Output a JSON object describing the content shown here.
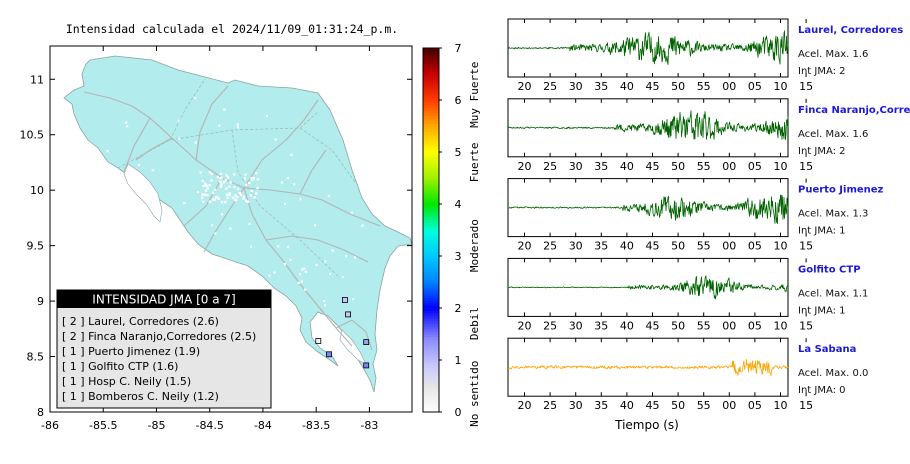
{
  "map": {
    "title": "Intensidad calculada el 2024/11/09_01:31:24_p.m.",
    "lon_ticks": [
      "-86",
      "-85.5",
      "-85",
      "-84.5",
      "-84",
      "-83.5",
      "-83"
    ],
    "lat_ticks": [
      "8",
      "8.5",
      "9",
      "9.5",
      "10",
      "10.5",
      "11"
    ],
    "land_color": "#b2ecec",
    "stations": [
      {
        "lon": -83.23,
        "lat": 9.01,
        "color": "#c8c8ff"
      },
      {
        "lon": -83.2,
        "lat": 8.88,
        "color": "#c8c8ff"
      },
      {
        "lon": -83.03,
        "lat": 8.63,
        "color": "#a0a0f0"
      },
      {
        "lon": -83.48,
        "lat": 8.64,
        "color": "#ffffff"
      },
      {
        "lon": -83.38,
        "lat": 8.52,
        "color": "#8080ff"
      },
      {
        "lon": -83.03,
        "lat": 8.42,
        "color": "#8080ff"
      }
    ]
  },
  "legend": {
    "title": "INTENSIDAD JMA [0 a 7]",
    "items": [
      "[ 2 ] Laurel, Corredores (2.6)",
      "[ 2 ] Finca Naranjo,Corredores (2.5)",
      "[ 1 ] Puerto Jimenez (1.9)",
      "[ 1 ] Golfito CTP (1.6)",
      "[ 1 ] Hosp C. Neily (1.5)",
      "[ 1 ] Bomberos C. Neily (1.2)"
    ]
  },
  "colorbar": {
    "ticks": [
      "0",
      "1",
      "2",
      "3",
      "4",
      "5",
      "6",
      "7"
    ],
    "labels": [
      {
        "text": "Muy Fuerte",
        "at": 6.1
      },
      {
        "text": "Fuerte",
        "at": 4.8
      },
      {
        "text": "Moderado",
        "at": 3.2
      },
      {
        "text": "Debil",
        "at": 1.7
      },
      {
        "text": "No sentido",
        "at": 0.35
      }
    ]
  },
  "traces": {
    "xlabel": "Tiempo (s)",
    "x_ticks": [
      "20",
      "25",
      "30",
      "35",
      "40",
      "45",
      "50",
      "55",
      "00",
      "05",
      "10",
      "15"
    ],
    "stations": [
      {
        "name": "Laurel, Corredores",
        "acel": "Acel. Max. 1.6",
        "jma": "Int JMA: 2",
        "color": "#006400",
        "onset": 0.22,
        "amp": 0.9,
        "seed": 11
      },
      {
        "name": "Finca Naranjo,Corredores",
        "acel": "Acel. Max. 1.6",
        "jma": "Int JMA: 2",
        "color": "#006400",
        "onset": 0.38,
        "amp": 0.95,
        "seed": 23
      },
      {
        "name": "Puerto Jimenez",
        "acel": "Acel. Max. 1.3",
        "jma": "Int JMA: 1",
        "color": "#006400",
        "onset": 0.41,
        "amp": 0.85,
        "seed": 37
      },
      {
        "name": "Golfito CTP",
        "acel": "Acel. Max. 1.1",
        "jma": "Int JMA: 1",
        "color": "#006400",
        "onset": 0.42,
        "amp": 0.55,
        "seed": 41
      },
      {
        "name": "La Sabana",
        "acel": "Acel. Max. 0.0",
        "jma": "Int JMA: 0",
        "color": "#ffa500",
        "onset": 0.8,
        "amp": 0.45,
        "seed": 53
      }
    ]
  },
  "chart_data": [
    {
      "type": "scatter",
      "title": "Intensidad calculada el 2024/11/09_01:31:24_p.m.",
      "xlabel": "",
      "ylabel": "",
      "xlim": [
        -86,
        -82.6
      ],
      "ylim": [
        8,
        11.3
      ],
      "x_ticks": [
        -86,
        -85.5,
        -85,
        -84.5,
        -84,
        -83.5,
        -83
      ],
      "y_ticks": [
        8,
        8.5,
        9,
        9.5,
        10,
        10.5,
        11
      ],
      "colorbar": {
        "range": [
          0,
          7
        ],
        "labels": [
          "Muy Fuerte",
          "Fuerte",
          "Moderado",
          "Debil",
          "No sentido"
        ]
      },
      "legend_title": "INTENSIDAD JMA [0 a 7]",
      "legend": [
        {
          "label": "Laurel, Corredores",
          "jma": 2,
          "value": 2.6
        },
        {
          "label": "Finca Naranjo,Corredores",
          "jma": 2,
          "value": 2.5
        },
        {
          "label": "Puerto Jimenez",
          "jma": 1,
          "value": 1.9
        },
        {
          "label": "Golfito CTP",
          "jma": 1,
          "value": 1.6
        },
        {
          "label": "Hosp C. Neily",
          "jma": 1,
          "value": 1.5
        },
        {
          "label": "Bomberos C. Neily",
          "jma": 1,
          "value": 1.2
        }
      ]
    },
    {
      "type": "line",
      "xlabel": "Tiempo (s)",
      "x_ticks": [
        "20",
        "25",
        "30",
        "35",
        "40",
        "45",
        "50",
        "55",
        "00",
        "05",
        "10",
        "15"
      ],
      "series": [
        {
          "name": "Laurel, Corredores",
          "acel_max": 1.6,
          "int_jma": 2
        },
        {
          "name": "Finca Naranjo,Corredores",
          "acel_max": 1.6,
          "int_jma": 2
        },
        {
          "name": "Puerto Jimenez",
          "acel_max": 1.3,
          "int_jma": 1
        },
        {
          "name": "Golfito CTP",
          "acel_max": 1.1,
          "int_jma": 1
        },
        {
          "name": "La Sabana",
          "acel_max": 0.0,
          "int_jma": 0
        }
      ]
    }
  ]
}
